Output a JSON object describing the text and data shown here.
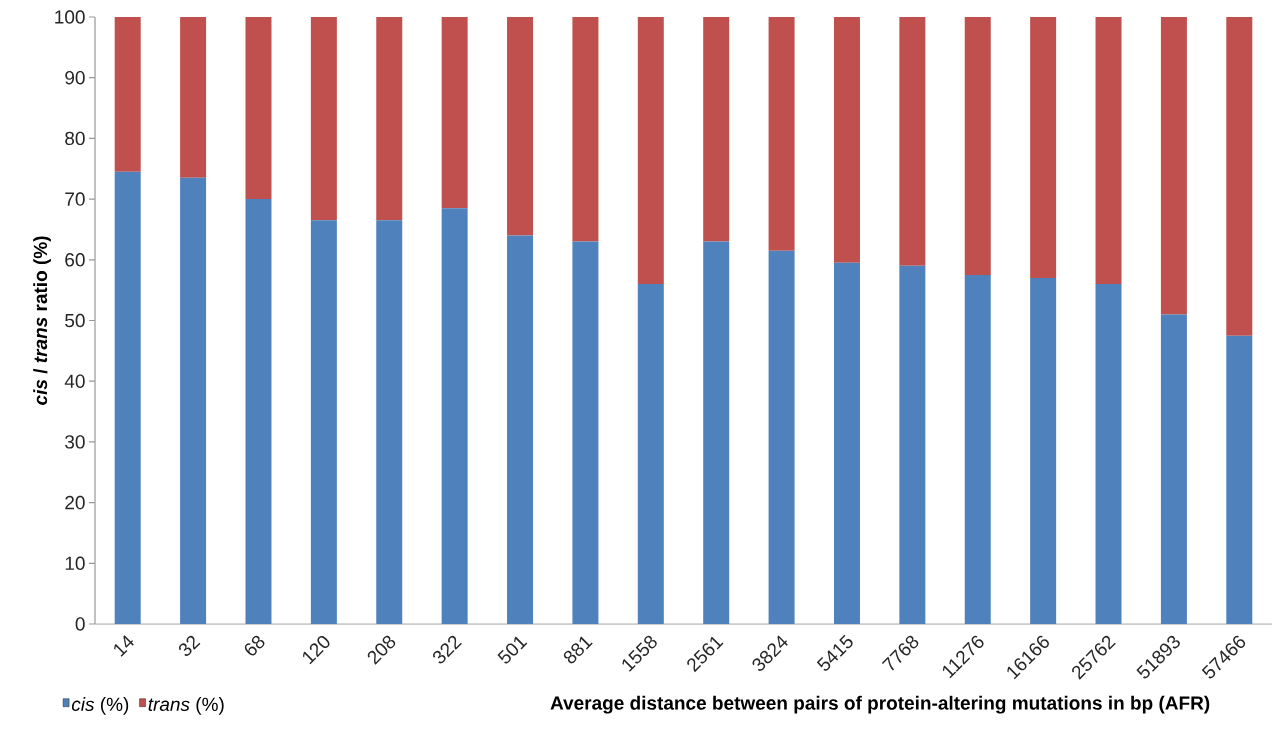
{
  "chart_data": {
    "type": "bar",
    "stacked": true,
    "ylabel": "*cis* / *trans* ratio (%)",
    "xlabel": "Average distance between pairs of protein-altering mutations in bp (AFR)",
    "categories": [
      "14",
      "32",
      "68",
      "120",
      "208",
      "322",
      "501",
      "881",
      "1558",
      "2561",
      "3824",
      "5415",
      "7768",
      "11276",
      "16166",
      "25762",
      "51893",
      "57466"
    ],
    "series": [
      {
        "name": "*cis* (%)",
        "color": "#4f81bd",
        "values": [
          74.5,
          73.5,
          70,
          66.5,
          66.5,
          68.5,
          64,
          63,
          56,
          63,
          61.5,
          59.5,
          59,
          57.5,
          57,
          56,
          51,
          47.5
        ]
      },
      {
        "name": "*trans* (%)",
        "color": "#c0504d",
        "values": [
          25.5,
          26.5,
          30,
          33.5,
          33.5,
          31.5,
          36,
          37,
          44,
          37,
          38.5,
          40.5,
          41,
          42.5,
          43,
          44,
          49,
          52.5
        ]
      }
    ],
    "ylim": [
      0,
      100
    ],
    "yticks": [
      0,
      10,
      20,
      30,
      40,
      50,
      60,
      70,
      80,
      90,
      100
    ],
    "grid": false,
    "legend": "bottom left"
  }
}
